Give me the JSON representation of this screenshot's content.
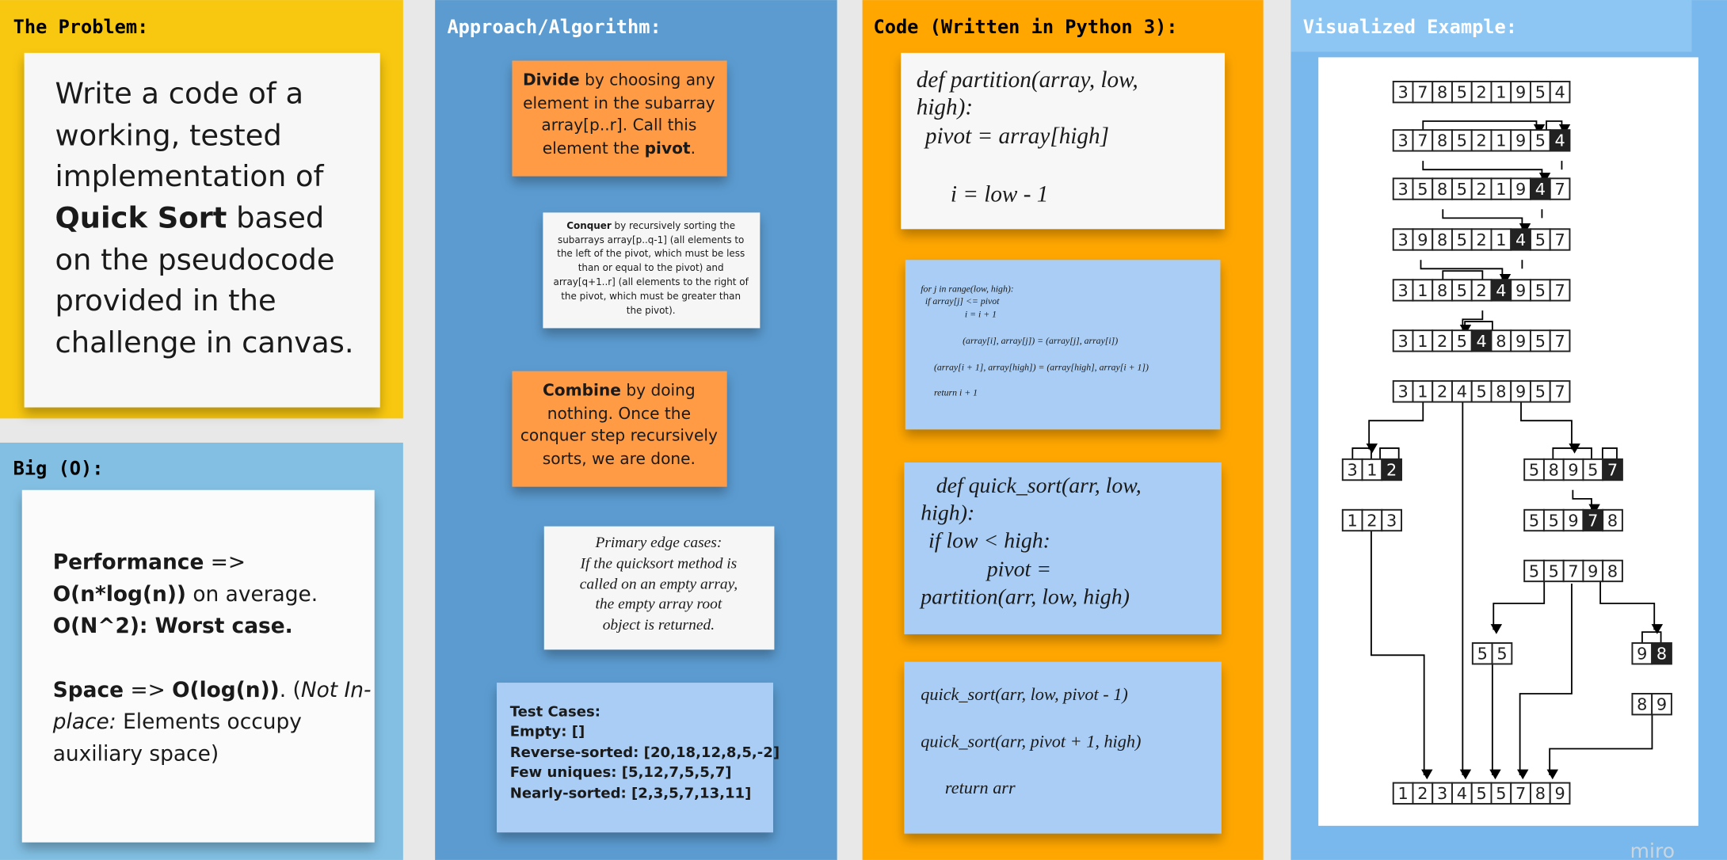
{
  "problem": {
    "title": "The Problem:",
    "lines": [
      [
        {
          "t": "Write a code of a"
        }
      ],
      [
        {
          "t": "working, tested"
        }
      ],
      [
        {
          "t": "implementation of"
        }
      ],
      [
        {
          "t": "Quick Sort",
          "bold": true
        },
        {
          "t": " based"
        }
      ],
      [
        {
          "t": "on the pseudocode"
        }
      ],
      [
        {
          "t": "provided in the"
        }
      ],
      [
        {
          "t": "challenge in canvas."
        }
      ]
    ]
  },
  "big_o": {
    "title": "Big (O):",
    "lines": [
      [
        {
          "t": "Performance",
          "bold": true
        },
        {
          "t": " =>"
        }
      ],
      [
        {
          "t": "O(n*log(n))",
          "bold": true
        },
        {
          "t": " on average."
        }
      ],
      [
        {
          "t": "O(N^2): Worst case.",
          "bold": true
        }
      ],
      [
        {
          "t": "Space",
          "bold": true
        },
        {
          "t": " => "
        },
        {
          "t": "O(log(n))",
          "bold": true
        },
        {
          "t": ". ("
        },
        {
          "t": "Not In-",
          "italic": true
        }
      ],
      [
        {
          "t": "place:",
          "italic": true
        },
        {
          "t": " Elements occupy"
        }
      ],
      [
        {
          "t": "auxiliary space)"
        }
      ]
    ]
  },
  "approach": {
    "title": "Approach/Algorithm:",
    "notes": [
      {
        "lines": [
          [
            {
              "t": "Divide",
              "bold": true
            },
            {
              "t": " by choosing any"
            }
          ],
          [
            {
              "t": "element in the subarray"
            }
          ],
          [
            {
              "t": "array[p..r]. Call this"
            }
          ],
          [
            {
              "t": "element the "
            },
            {
              "t": "pivot",
              "bold": true
            },
            {
              "t": "."
            }
          ]
        ]
      },
      {
        "lines": [
          [
            {
              "t": "Conquer",
              "bold": true
            },
            {
              "t": " by recursively sorting the"
            }
          ],
          [
            {
              "t": "subarrays array[p..q-1] (all elements to"
            }
          ],
          [
            {
              "t": "the left of the pivot, which must be less"
            }
          ],
          [
            {
              "t": "than or equal to the pivot) and"
            }
          ],
          [
            {
              "t": "array[q+1..r] (all elements to the right of"
            }
          ],
          [
            {
              "t": "the pivot, which must be greater than"
            }
          ],
          [
            {
              "t": "the pivot)."
            }
          ]
        ]
      },
      {
        "lines": [
          [
            {
              "t": "Combine",
              "bold": true
            },
            {
              "t": " by doing"
            }
          ],
          [
            {
              "t": "nothing. Once the"
            }
          ],
          [
            {
              "t": "conquer step recursively"
            }
          ],
          [
            {
              "t": "sorts, we are done."
            }
          ]
        ]
      },
      {
        "lines": [
          [
            {
              "t": "Primary edge cases:"
            }
          ],
          [
            {
              "t": "If the quicksort method is"
            }
          ],
          [
            {
              "t": "called on an empty array,"
            }
          ],
          [
            {
              "t": "the empty array root"
            }
          ],
          [
            {
              "t": "object is returned."
            }
          ]
        ]
      },
      {
        "lines": [
          [
            {
              "t": "Test Cases:"
            }
          ],
          [
            {
              "t": "Empty: []"
            }
          ],
          [
            {
              "t": "Reverse-sorted: [20,18,12,8,5,-2]"
            }
          ],
          [
            {
              "t": "Few uniques: [5,12,7,5,5,7]"
            }
          ],
          [
            {
              "t": "Nearly-sorted: [2,3,5,7,13,11]"
            }
          ]
        ]
      }
    ]
  },
  "code": {
    "title": "Code (Written in Python 3):",
    "notes": [
      {
        "lines": [
          [
            {
              "t": "def partition(array, low,"
            }
          ],
          [
            {
              "t": "high):"
            }
          ],
          [
            {
              "t": "pivot = array[high]"
            }
          ],
          [
            {
              "t": "i = low - 1"
            }
          ]
        ]
      },
      {
        "lines": [
          [
            {
              "t": "for j in range(low, high):"
            }
          ],
          [
            {
              "t": "if array[j] <= pivot"
            }
          ],
          [
            {
              "t": "i = i + 1"
            }
          ],
          [
            {
              "t": "(array[i], array[j]) = (array[j], array[i])"
            }
          ],
          [
            {
              "t": "(array[i + 1], array[high]) = (array[high], array[i + 1])"
            }
          ],
          [
            {
              "t": "return i + 1"
            }
          ]
        ]
      },
      {
        "lines": [
          [
            {
              "t": "def quick_sort(arr, low,"
            }
          ],
          [
            {
              "t": "high):"
            }
          ],
          [
            {
              "t": "if low < high:"
            }
          ],
          [
            {
              "t": "pivot ="
            }
          ],
          [
            {
              "t": "partition(arr, low, high)"
            }
          ]
        ]
      },
      {
        "lines": [
          [
            {
              "t": "quick_sort(arr, low, pivot - 1)"
            }
          ],
          [
            {
              "t": "quick_sort(arr, pivot + 1, high)"
            }
          ],
          [
            {
              "t": "return arr"
            }
          ]
        ]
      }
    ]
  },
  "visual": {
    "title": "Visualized Example:",
    "rows": [
      {
        "cells": [
          3,
          7,
          8,
          5,
          2,
          1,
          9,
          5,
          4
        ]
      },
      {
        "cells": [
          3,
          7,
          8,
          5,
          2,
          1,
          9,
          5,
          4
        ],
        "highlight": 8
      },
      {
        "cells": [
          3,
          5,
          8,
          5,
          2,
          1,
          9,
          4,
          7
        ],
        "highlight": 7
      },
      {
        "cells": [
          3,
          9,
          8,
          5,
          2,
          1,
          4,
          5,
          7
        ],
        "highlight": 6
      },
      {
        "cells": [
          3,
          1,
          8,
          5,
          2,
          4,
          9,
          5,
          7
        ],
        "highlight": 5
      },
      {
        "cells": [
          3,
          1,
          2,
          5,
          4,
          8,
          9,
          5,
          7
        ],
        "highlight": 4
      },
      {
        "cells": [
          3,
          1,
          2,
          4,
          5,
          8,
          9,
          5,
          7
        ]
      },
      {
        "cells": [
          3,
          1,
          2
        ],
        "highlight": 2
      },
      {
        "cells": [
          1,
          2,
          3
        ]
      },
      {
        "cells": [
          5,
          8,
          9,
          5,
          7
        ],
        "highlight": 4
      },
      {
        "cells": [
          5,
          5,
          9,
          7,
          8
        ],
        "highlight": 3
      },
      {
        "cells": [
          5,
          5,
          7,
          9,
          8
        ]
      },
      {
        "cells": [
          5,
          5
        ]
      },
      {
        "cells": [
          9,
          8
        ],
        "highlight": 1
      },
      {
        "cells": [
          8,
          9
        ]
      },
      {
        "cells": [
          1,
          2,
          3,
          4,
          5,
          5,
          7,
          8,
          9
        ]
      }
    ]
  },
  "watermark": "miro"
}
